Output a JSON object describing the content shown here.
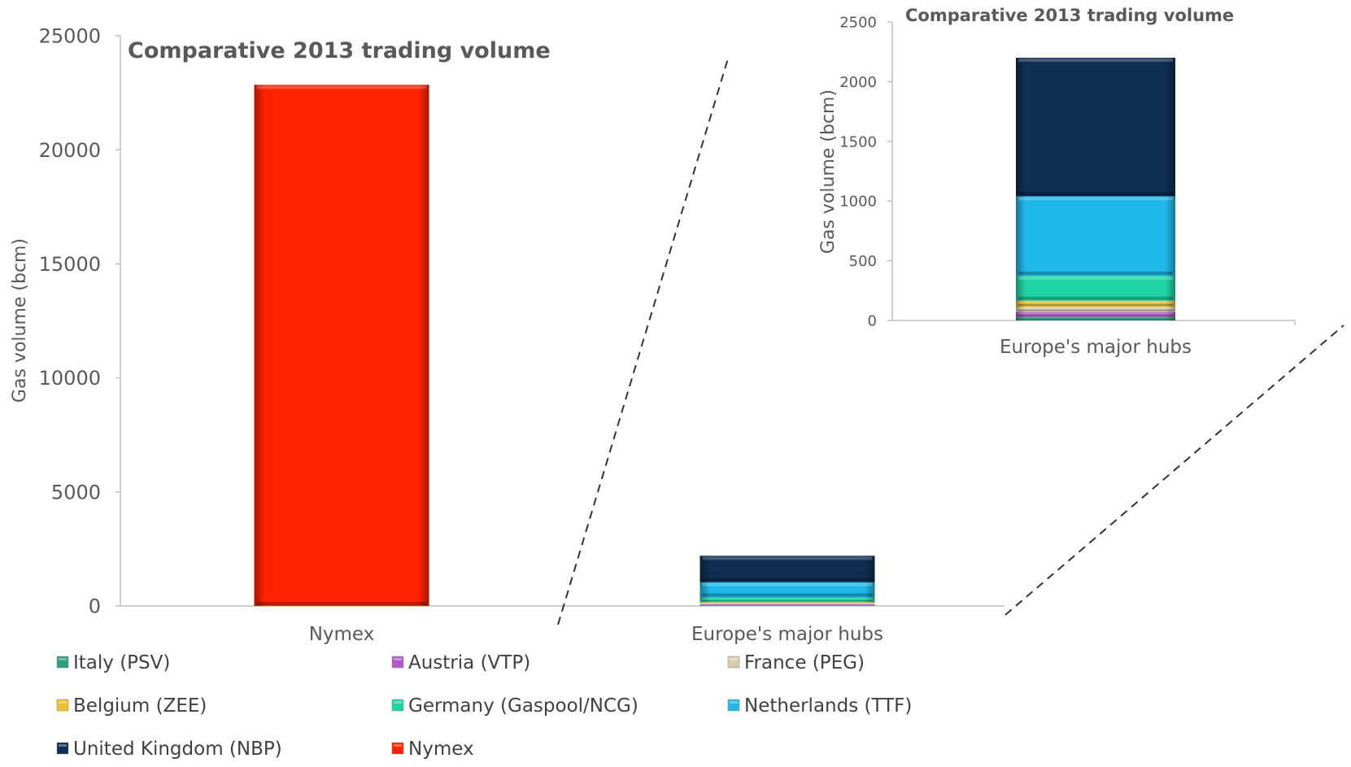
{
  "chart_data": [
    {
      "type": "bar",
      "stacked": true,
      "title": "Comparative 2013 trading volume",
      "ylabel": "Gas volume (bcm)",
      "xlabel": "",
      "ylim": [
        0,
        25000
      ],
      "yticks": [
        "0",
        "5000",
        "10000",
        "15000",
        "20000",
        "25000"
      ],
      "categories": [
        "Nymex",
        "Europe's major hubs"
      ],
      "series": [
        {
          "name": "Italy (PSV)",
          "color": "#2e9e7e",
          "values": [
            0,
            30
          ]
        },
        {
          "name": "Austria (VTP)",
          "color": "#b45ac8",
          "values": [
            0,
            40
          ]
        },
        {
          "name": "France (PEG)",
          "color": "#d8ccb0",
          "values": [
            0,
            45
          ]
        },
        {
          "name": "Belgium (ZEE)",
          "color": "#e8c030",
          "values": [
            0,
            50
          ]
        },
        {
          "name": "Germany (Gaspool/NCG)",
          "color": "#1fd4a4",
          "values": [
            0,
            210
          ]
        },
        {
          "name": "Netherlands (TTF)",
          "color": "#1fb8e8",
          "values": [
            0,
            665
          ]
        },
        {
          "name": "United Kingdom (NBP)",
          "color": "#0f2e52",
          "values": [
            0,
            1160
          ]
        },
        {
          "name": "Nymex",
          "color": "#ff2200",
          "values": [
            22850,
            0
          ]
        }
      ]
    },
    {
      "type": "bar",
      "stacked": true,
      "title": "Comparative 2013 trading volume",
      "ylabel": "Gas volume (bcm)",
      "xlabel": "",
      "ylim": [
        0,
        2500
      ],
      "yticks": [
        "0",
        "500",
        "1000",
        "1500",
        "2000",
        "2500"
      ],
      "categories": [
        "Europe's major hubs"
      ],
      "series": [
        {
          "name": "Italy (PSV)",
          "color": "#2e9e7e",
          "values": [
            30
          ]
        },
        {
          "name": "Austria (VTP)",
          "color": "#b45ac8",
          "values": [
            40
          ]
        },
        {
          "name": "France (PEG)",
          "color": "#d8ccb0",
          "values": [
            45
          ]
        },
        {
          "name": "Belgium (ZEE)",
          "color": "#e8c030",
          "values": [
            50
          ]
        },
        {
          "name": "Germany (Gaspool/NCG)",
          "color": "#1fd4a4",
          "values": [
            210
          ]
        },
        {
          "name": "Netherlands (TTF)",
          "color": "#1fb8e8",
          "values": [
            665
          ]
        },
        {
          "name": "United Kingdom (NBP)",
          "color": "#0f2e52",
          "values": [
            1160
          ]
        }
      ]
    }
  ],
  "legend": {
    "placement": "bottom",
    "items": [
      {
        "label": "Italy (PSV)",
        "color": "#2e9e7e"
      },
      {
        "label": "Austria (VTP)",
        "color": "#b45ac8"
      },
      {
        "label": "France (PEG)",
        "color": "#d8ccb0"
      },
      {
        "label": "Belgium (ZEE)",
        "color": "#e8c030"
      },
      {
        "label": "Germany (Gaspool/NCG)",
        "color": "#1fd4a4"
      },
      {
        "label": "Netherlands (TTF)",
        "color": "#1fb8e8"
      },
      {
        "label": "United Kingdom (NBP)",
        "color": "#0f2e52"
      },
      {
        "label": "Nymex",
        "color": "#ff2200"
      }
    ]
  }
}
